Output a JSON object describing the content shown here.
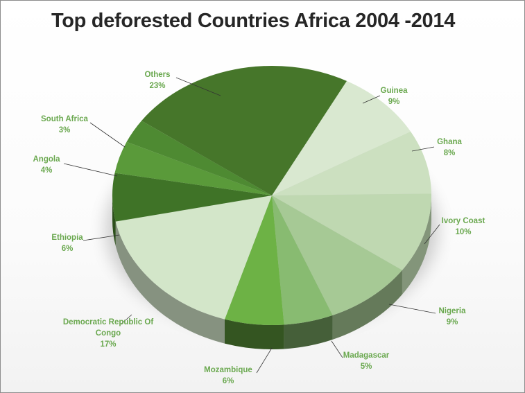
{
  "chart_data": {
    "type": "pie",
    "title": "Top deforested Countries Africa 2004 -2014",
    "series": [
      {
        "values": [
          {
            "label": "Guinea",
            "value": 9,
            "display": "9%"
          },
          {
            "label": "Ghana",
            "value": 8,
            "display": "8%"
          },
          {
            "label": "Ivory Coast",
            "value": 10,
            "display": "10%"
          },
          {
            "label": "Nigeria",
            "value": 9,
            "display": "9%"
          },
          {
            "label": "Madagascar",
            "value": 5,
            "display": "5%"
          },
          {
            "label": "Mozambique",
            "value": 6,
            "display": "6%"
          },
          {
            "label": "Democratic Republic Of Congo",
            "value": 17,
            "display": "17%"
          },
          {
            "label": "Ethiopia",
            "value": 6,
            "display": "6%"
          },
          {
            "label": "Angola",
            "value": 4,
            "display": "4%"
          },
          {
            "label": "South Africa",
            "value": 3,
            "display": "3%"
          },
          {
            "label": "Others",
            "value": 23,
            "display": "23%"
          }
        ]
      }
    ],
    "colors": [
      "#d9e8d0",
      "#cce0c0",
      "#bfd8b1",
      "#a6c995",
      "#88bb71",
      "#6db245",
      "#d3e6c9",
      "#3f7327",
      "#5a9a3a",
      "#4e8a32",
      "#46762a"
    ],
    "legend": "none",
    "style": "3d-exploded-free"
  }
}
